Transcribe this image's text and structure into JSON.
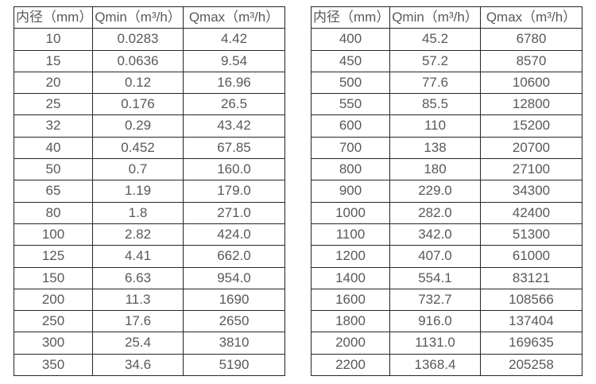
{
  "page": {
    "background_color": "#ffffff",
    "text_color": "#595959",
    "border_color": "#262626"
  },
  "chart_data": [
    {
      "type": "table",
      "title": "",
      "columns": [
        "内径（mm）",
        "Qmin（m³/h）",
        "Qmax（m³/h）"
      ],
      "rows": [
        [
          "10",
          "0.0283",
          "4.42"
        ],
        [
          "15",
          "0.0636",
          "9.54"
        ],
        [
          "20",
          "0.12",
          "16.96"
        ],
        [
          "25",
          "0.176",
          "26.5"
        ],
        [
          "32",
          "0.29",
          "43.42"
        ],
        [
          "40",
          "0.452",
          "67.85"
        ],
        [
          "50",
          "0.7",
          "160.0"
        ],
        [
          "65",
          "1.19",
          "179.0"
        ],
        [
          "80",
          "1.8",
          "271.0"
        ],
        [
          "100",
          "2.82",
          "424.0"
        ],
        [
          "125",
          "4.41",
          "662.0"
        ],
        [
          "150",
          "6.63",
          "954.0"
        ],
        [
          "200",
          "11.3",
          "1690"
        ],
        [
          "250",
          "17.6",
          "2650"
        ],
        [
          "300",
          "25.4",
          "3810"
        ],
        [
          "350",
          "34.6",
          "5190"
        ]
      ]
    },
    {
      "type": "table",
      "title": "",
      "columns": [
        "内径（mm）",
        "Qmin（m³/h）",
        "Qmax（m³/h）"
      ],
      "rows": [
        [
          "400",
          "45.2",
          "6780"
        ],
        [
          "450",
          "57.2",
          "8570"
        ],
        [
          "500",
          "77.6",
          "10600"
        ],
        [
          "550",
          "85.5",
          "12800"
        ],
        [
          "600",
          "110",
          "15200"
        ],
        [
          "700",
          "138",
          "20700"
        ],
        [
          "800",
          "180",
          "27100"
        ],
        [
          "900",
          "229.0",
          "34300"
        ],
        [
          "1000",
          "282.0",
          "42400"
        ],
        [
          "1100",
          "342.0",
          "51300"
        ],
        [
          "1200",
          "407.0",
          "61000"
        ],
        [
          "1400",
          "554.1",
          "83121"
        ],
        [
          "1600",
          "732.7",
          "108566"
        ],
        [
          "1800",
          "916.0",
          "137404"
        ],
        [
          "2000",
          "1131.0",
          "169635"
        ],
        [
          "2200",
          "1368.4",
          "205258"
        ]
      ]
    }
  ]
}
